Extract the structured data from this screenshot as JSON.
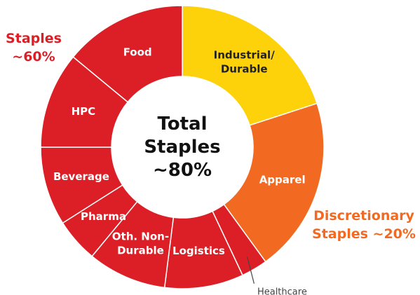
{
  "chart_data": {
    "type": "donut",
    "categories": [
      "Industrial/\nDurable",
      "Apparel",
      "Healthcare",
      "Logistics",
      "Oth. Non-\nDurable",
      "Pharma",
      "Beverage",
      "HPC",
      "Food"
    ],
    "values": [
      20,
      20,
      3,
      9,
      9,
      5,
      9,
      11,
      14
    ],
    "colors": [
      "#fdd20b",
      "#f26a22",
      "#dc1f26",
      "#dc1f26",
      "#dc1f26",
      "#dc1f26",
      "#dc1f26",
      "#dc1f26",
      "#dc1f26"
    ],
    "center_label": "Total\nStaples\n~80%",
    "annotations": [
      {
        "text": "Staples\n~60%",
        "color": "#dc1f26"
      },
      {
        "text": "Discretionary\nStaples ~20%",
        "color": "#f26a22"
      }
    ]
  }
}
